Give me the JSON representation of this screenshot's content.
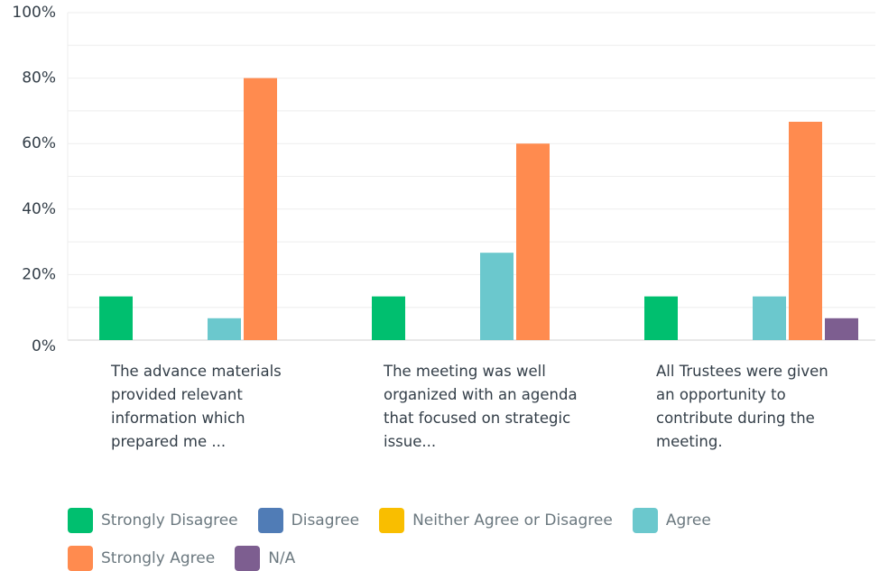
{
  "chart_data": {
    "type": "bar",
    "categories": [
      "The advance materials provided relevant information which prepared me ...",
      "The meeting was well organized with an agenda that focused on strategic issue...",
      "All Trustees were given an opportunity to contribute during the meeting."
    ],
    "series": [
      {
        "name": "Strongly Disagree",
        "color": "#00bf6f",
        "values": [
          13.33,
          13.33,
          13.33
        ]
      },
      {
        "name": "Disagree",
        "color": "#507cb6",
        "values": [
          0,
          0,
          0
        ]
      },
      {
        "name": "Neither Agree or Disagree",
        "color": "#f9be00",
        "values": [
          0,
          0,
          0
        ]
      },
      {
        "name": "Agree",
        "color": "#6bc8cd",
        "values": [
          6.67,
          26.67,
          13.33
        ]
      },
      {
        "name": "Strongly Agree",
        "color": "#ff8b4f",
        "values": [
          80,
          60,
          66.67
        ]
      },
      {
        "name": "N/A",
        "color": "#7d5e90",
        "values": [
          0,
          0,
          6.67
        ]
      }
    ],
    "ylim": [
      0,
      100
    ],
    "yticks": [
      {
        "value": 0,
        "label": "0%"
      },
      {
        "value": 20,
        "label": "20%"
      },
      {
        "value": 40,
        "label": "40%"
      },
      {
        "value": 60,
        "label": "60%"
      },
      {
        "value": 80,
        "label": "80%"
      },
      {
        "value": 100,
        "label": "100%"
      }
    ],
    "minor_yticks": [
      10,
      30,
      50,
      70,
      90
    ],
    "grid": true
  }
}
